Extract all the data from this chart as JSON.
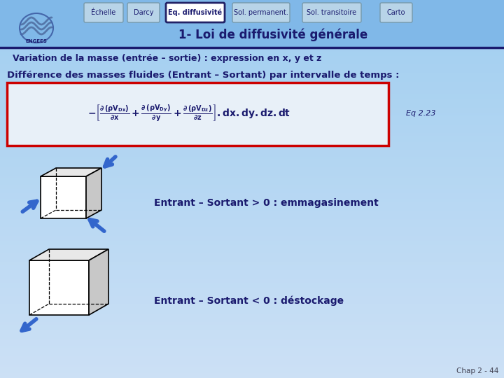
{
  "bg_color_top": "#a0cef0",
  "bg_color_bottom": "#cce0f5",
  "header_bg": "#80b8e8",
  "nav_buttons": [
    "Échelle",
    "Darcy",
    "Eq. diffusivité",
    "Sol. permanent.",
    "Sol. transitoire",
    "Carto"
  ],
  "active_button": "Eq. diffusivité",
  "title": "1- Loi de diffusivité générale",
  "line1": "Variation de la masse (entrée – sortie) : expression en x, y et z",
  "line2": "Différence des masses fluides (Entrant – Sortant) par intervalle de temps :",
  "eq_label": "Eq 2.23",
  "text_emmagasinement": "Entrant – Sortant > 0 : emmagasinement",
  "text_destockage": "Entrant – Sortant < 0 : déstockage",
  "chap_ref": "Chap 2 - 44",
  "text_color": "#1a1a6e",
  "nav_text_color": "#1a1a6e",
  "red_box_color": "#cc0000",
  "arrow_color": "#3366cc",
  "cube_edge": "#000000",
  "cube_face_white": "#ffffff",
  "cube_face_light": "#e8e8e8",
  "cube_face_mid": "#c8c8c8"
}
